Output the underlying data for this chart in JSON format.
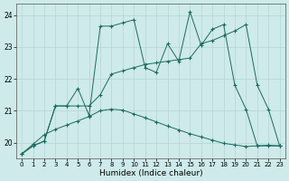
{
  "background_color": "#ceeaea",
  "grid_color": "#b5d5d5",
  "line_color": "#1a6b60",
  "xlabel": "Humidex (Indice chaleur)",
  "xlim": [
    -0.5,
    23.5
  ],
  "ylim": [
    19.5,
    24.35
  ],
  "yticks": [
    20,
    21,
    22,
    23,
    24
  ],
  "xticks": [
    0,
    1,
    2,
    3,
    4,
    5,
    6,
    7,
    8,
    9,
    10,
    11,
    12,
    13,
    14,
    15,
    16,
    17,
    18,
    19,
    20,
    21,
    22,
    23
  ],
  "line1_x": [
    0,
    1,
    2,
    3,
    4,
    5,
    6,
    7,
    8,
    9,
    10,
    11,
    12,
    13,
    14,
    15,
    16,
    17,
    18,
    19,
    20,
    21,
    22,
    23
  ],
  "line1_y": [
    19.65,
    19.9,
    20.05,
    21.15,
    21.15,
    21.7,
    20.85,
    23.65,
    23.65,
    23.75,
    23.85,
    22.35,
    22.2,
    23.1,
    22.55,
    24.1,
    23.05,
    23.55,
    23.7,
    21.8,
    21.05,
    19.9,
    19.9,
    19.9
  ],
  "line2_x": [
    0,
    1,
    2,
    3,
    4,
    5,
    6,
    7,
    8,
    9,
    10,
    11,
    12,
    13,
    14,
    15,
    16,
    17,
    18,
    19,
    20,
    21,
    22,
    23
  ],
  "line2_y": [
    19.65,
    19.9,
    20.05,
    21.15,
    21.15,
    21.15,
    21.15,
    21.5,
    22.15,
    22.25,
    22.35,
    22.45,
    22.5,
    22.55,
    22.6,
    22.65,
    23.1,
    23.2,
    23.35,
    23.5,
    23.7,
    21.8,
    21.05,
    19.9
  ],
  "line3_x": [
    0,
    1,
    2,
    3,
    4,
    5,
    6,
    7,
    8,
    9,
    10,
    11,
    12,
    13,
    14,
    15,
    16,
    17,
    18,
    19,
    20,
    21,
    22,
    23
  ],
  "line3_y": [
    19.65,
    19.95,
    20.25,
    20.42,
    20.55,
    20.68,
    20.82,
    21.0,
    21.05,
    21.02,
    20.9,
    20.78,
    20.65,
    20.52,
    20.4,
    20.28,
    20.18,
    20.08,
    19.98,
    19.93,
    19.88,
    19.9,
    19.92,
    19.9
  ]
}
